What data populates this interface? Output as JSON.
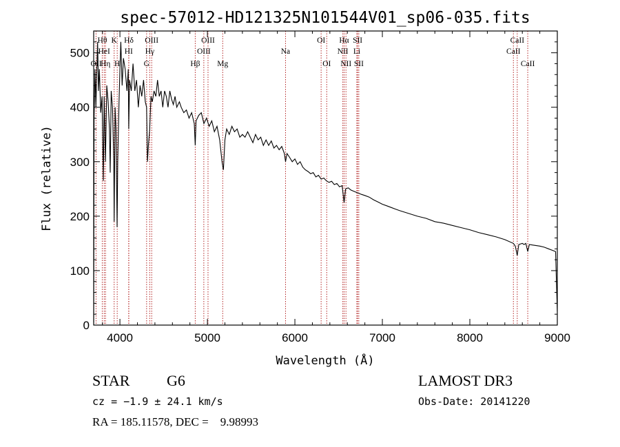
{
  "chart_data": {
    "type": "line",
    "title": "spec-57012-HD121325N101544V01_sp06-035.fits",
    "xlabel": "Wavelength (Å)",
    "ylabel": "Flux (relative)",
    "xlim": [
      3700,
      9000
    ],
    "ylim": [
      0,
      540
    ],
    "xticks": [
      "4000",
      "5000",
      "6000",
      "7000",
      "8000",
      "9000"
    ],
    "yticks": [
      "0",
      "100",
      "200",
      "300",
      "400",
      "500"
    ],
    "series": [
      {
        "name": "spectrum",
        "points": [
          [
            3700,
            5
          ],
          [
            3705,
            380
          ],
          [
            3715,
            470
          ],
          [
            3725,
            400
          ],
          [
            3735,
            460
          ],
          [
            3745,
            520
          ],
          [
            3755,
            430
          ],
          [
            3765,
            470
          ],
          [
            3780,
            390
          ],
          [
            3795,
            420
          ],
          [
            3810,
            265
          ],
          [
            3820,
            420
          ],
          [
            3835,
            300
          ],
          [
            3850,
            440
          ],
          [
            3865,
            410
          ],
          [
            3880,
            360
          ],
          [
            3889,
            280
          ],
          [
            3900,
            430
          ],
          [
            3915,
            400
          ],
          [
            3930,
            300
          ],
          [
            3934,
            190
          ],
          [
            3945,
            400
          ],
          [
            3955,
            360
          ],
          [
            3968,
            180
          ],
          [
            3975,
            300
          ],
          [
            3990,
            410
          ],
          [
            4000,
            470
          ],
          [
            4010,
            520
          ],
          [
            4025,
            440
          ],
          [
            4040,
            490
          ],
          [
            4060,
            470
          ],
          [
            4080,
            430
          ],
          [
            4095,
            470
          ],
          [
            4101,
            360
          ],
          [
            4110,
            450
          ],
          [
            4130,
            430
          ],
          [
            4150,
            480
          ],
          [
            4170,
            430
          ],
          [
            4190,
            450
          ],
          [
            4210,
            400
          ],
          [
            4230,
            440
          ],
          [
            4250,
            420
          ],
          [
            4270,
            450
          ],
          [
            4290,
            410
          ],
          [
            4305,
            400
          ],
          [
            4315,
            300
          ],
          [
            4325,
            330
          ],
          [
            4340,
            360
          ],
          [
            4355,
            420
          ],
          [
            4370,
            410
          ],
          [
            4390,
            430
          ],
          [
            4410,
            420
          ],
          [
            4430,
            450
          ],
          [
            4450,
            420
          ],
          [
            4470,
            430
          ],
          [
            4490,
            400
          ],
          [
            4510,
            430
          ],
          [
            4530,
            420
          ],
          [
            4550,
            400
          ],
          [
            4570,
            430
          ],
          [
            4590,
            415
          ],
          [
            4610,
            405
          ],
          [
            4630,
            420
          ],
          [
            4650,
            400
          ],
          [
            4680,
            410
          ],
          [
            4700,
            400
          ],
          [
            4730,
            390
          ],
          [
            4760,
            395
          ],
          [
            4790,
            380
          ],
          [
            4820,
            390
          ],
          [
            4850,
            370
          ],
          [
            4861,
            330
          ],
          [
            4870,
            375
          ],
          [
            4900,
            385
          ],
          [
            4930,
            390
          ],
          [
            4960,
            370
          ],
          [
            4990,
            380
          ],
          [
            5020,
            365
          ],
          [
            5050,
            375
          ],
          [
            5080,
            355
          ],
          [
            5110,
            365
          ],
          [
            5140,
            340
          ],
          [
            5167,
            300
          ],
          [
            5172,
            295
          ],
          [
            5183,
            285
          ],
          [
            5200,
            340
          ],
          [
            5220,
            360
          ],
          [
            5250,
            350
          ],
          [
            5280,
            365
          ],
          [
            5310,
            355
          ],
          [
            5340,
            360
          ],
          [
            5370,
            345
          ],
          [
            5400,
            350
          ],
          [
            5430,
            345
          ],
          [
            5460,
            355
          ],
          [
            5490,
            345
          ],
          [
            5520,
            335
          ],
          [
            5550,
            350
          ],
          [
            5580,
            340
          ],
          [
            5610,
            345
          ],
          [
            5640,
            330
          ],
          [
            5670,
            340
          ],
          [
            5700,
            330
          ],
          [
            5730,
            338
          ],
          [
            5760,
            325
          ],
          [
            5790,
            330
          ],
          [
            5820,
            322
          ],
          [
            5850,
            328
          ],
          [
            5880,
            315
          ],
          [
            5893,
            300
          ],
          [
            5910,
            315
          ],
          [
            5940,
            308
          ],
          [
            5970,
            300
          ],
          [
            6000,
            305
          ],
          [
            6030,
            295
          ],
          [
            6060,
            300
          ],
          [
            6090,
            290
          ],
          [
            6120,
            285
          ],
          [
            6150,
            282
          ],
          [
            6180,
            278
          ],
          [
            6210,
            280
          ],
          [
            6240,
            272
          ],
          [
            6270,
            275
          ],
          [
            6300,
            268
          ],
          [
            6330,
            270
          ],
          [
            6360,
            265
          ],
          [
            6390,
            262
          ],
          [
            6420,
            264
          ],
          [
            6450,
            258
          ],
          [
            6480,
            260
          ],
          [
            6510,
            254
          ],
          [
            6540,
            256
          ],
          [
            6563,
            225
          ],
          [
            6580,
            250
          ],
          [
            6610,
            252
          ],
          [
            6640,
            248
          ],
          [
            6670,
            246
          ],
          [
            6700,
            244
          ],
          [
            6730,
            242
          ],
          [
            6760,
            240
          ],
          [
            6800,
            238
          ],
          [
            6850,
            235
          ],
          [
            6900,
            230
          ],
          [
            6950,
            226
          ],
          [
            7000,
            222
          ],
          [
            7050,
            219
          ],
          [
            7100,
            216
          ],
          [
            7150,
            213
          ],
          [
            7200,
            210
          ],
          [
            7300,
            205
          ],
          [
            7400,
            200
          ],
          [
            7500,
            196
          ],
          [
            7600,
            190
          ],
          [
            7700,
            187
          ],
          [
            7800,
            183
          ],
          [
            7900,
            179
          ],
          [
            8000,
            175
          ],
          [
            8100,
            170
          ],
          [
            8200,
            166
          ],
          [
            8300,
            162
          ],
          [
            8400,
            157
          ],
          [
            8498,
            150
          ],
          [
            8520,
            145
          ],
          [
            8542,
            128
          ],
          [
            8560,
            148
          ],
          [
            8600,
            150
          ],
          [
            8620,
            148
          ],
          [
            8640,
            150
          ],
          [
            8662,
            135
          ],
          [
            8680,
            148
          ],
          [
            8720,
            147
          ],
          [
            8760,
            146
          ],
          [
            8800,
            145
          ],
          [
            8850,
            143
          ],
          [
            8900,
            140
          ],
          [
            8950,
            137
          ],
          [
            8980,
            135
          ],
          [
            8990,
            80
          ],
          [
            9000,
            25
          ]
        ]
      }
    ],
    "lines": [
      {
        "label": "Hθ",
        "x": 3798,
        "row": 1
      },
      {
        "label": "OII",
        "x": 3727,
        "row": 3
      },
      {
        "label": "HeI",
        "x": 3820,
        "row": 2
      },
      {
        "label": "Hη",
        "x": 3835,
        "row": 3
      },
      {
        "label": "K",
        "x": 3934,
        "row": 1
      },
      {
        "label": "H",
        "x": 3969,
        "row": 3
      },
      {
        "label": "Hδ",
        "x": 4102,
        "row": 1
      },
      {
        "label": "HI",
        "x": 4100,
        "row": 2
      },
      {
        "label": "OIII",
        "x": 4363,
        "row": 1
      },
      {
        "label": "Hγ",
        "x": 4341,
        "row": 2
      },
      {
        "label": "G",
        "x": 4305,
        "row": 3
      },
      {
        "label": "OIII",
        "x": 5007,
        "row": 1
      },
      {
        "label": "OIII",
        "x": 4959,
        "row": 2
      },
      {
        "label": "Hβ",
        "x": 4861,
        "row": 3
      },
      {
        "label": "Mg",
        "x": 5175,
        "row": 3
      },
      {
        "label": "Na",
        "x": 5893,
        "row": 2
      },
      {
        "label": "OI",
        "x": 6300,
        "row": 1
      },
      {
        "label": "OI",
        "x": 6364,
        "row": 3
      },
      {
        "label": "Hα",
        "x": 6563,
        "row": 1
      },
      {
        "label": "SII",
        "x": 6717,
        "row": 1
      },
      {
        "label": "NII",
        "x": 6548,
        "row": 2
      },
      {
        "label": "Li",
        "x": 6708,
        "row": 2
      },
      {
        "label": "NII",
        "x": 6584,
        "row": 3
      },
      {
        "label": "SII",
        "x": 6731,
        "row": 3
      },
      {
        "label": "CaII",
        "x": 8542,
        "row": 1
      },
      {
        "label": "CaII",
        "x": 8498,
        "row": 2
      },
      {
        "label": "CaII",
        "x": 8662,
        "row": 3
      }
    ]
  },
  "info": {
    "star_class": "STAR",
    "subclass": "G6",
    "survey": "LAMOST DR3",
    "velocity": "cz = −1.9 ± 24.1 km/s",
    "obs_date": "Obs-Date: 20141220",
    "coords": "RA = 185.11578, DEC =    9.98993"
  },
  "colors": {
    "spectrum": "#000000",
    "line_marker": "#b22222",
    "axes": "#000000"
  }
}
